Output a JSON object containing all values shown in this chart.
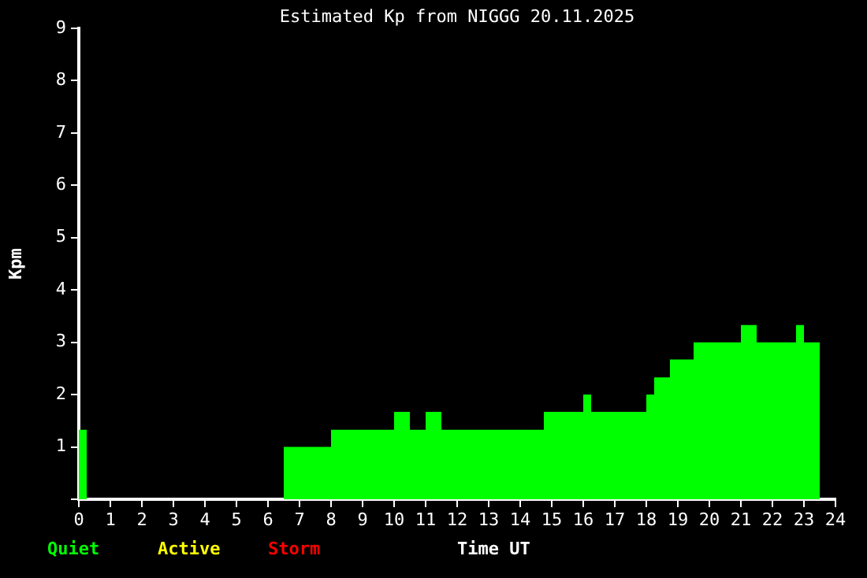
{
  "chart_data": {
    "type": "histogram",
    "title": "Estimated Kp from NIGGG 20.11.2025",
    "xlabel": "Time UT",
    "ylabel": "Kpm",
    "bins": [
      0,
      0.25,
      6.5,
      8,
      10,
      10.5,
      11,
      11.5,
      14.75,
      16,
      16.25,
      18,
      18.25,
      18.75,
      19.5,
      21,
      21.5,
      22.75,
      23,
      23.5
    ],
    "series": [
      {
        "name": "Quiet",
        "color": "#00ff00",
        "values": [
          1.33,
          null,
          1,
          1.33,
          1.67,
          1.33,
          1.67,
          1.33,
          1.67,
          2,
          1.67,
          2,
          2.33,
          2.67,
          3,
          3.33,
          3,
          3.33,
          3
        ]
      }
    ],
    "annotations": [
      "Active",
      "Storm"
    ],
    "xlim": [
      0,
      24
    ],
    "xticks": [
      0,
      1,
      2,
      3,
      4,
      5,
      6,
      7,
      8,
      9,
      10,
      11,
      12,
      13,
      14,
      15,
      16,
      17,
      18,
      19,
      20,
      21,
      22,
      23,
      24
    ],
    "ylim": [
      0,
      9
    ],
    "yticks": [
      {
        "value": 0,
        "label": null
      },
      1,
      2,
      3,
      4,
      5,
      6,
      7,
      8,
      9
    ],
    "grid": false,
    "legend": "bottom left"
  }
}
